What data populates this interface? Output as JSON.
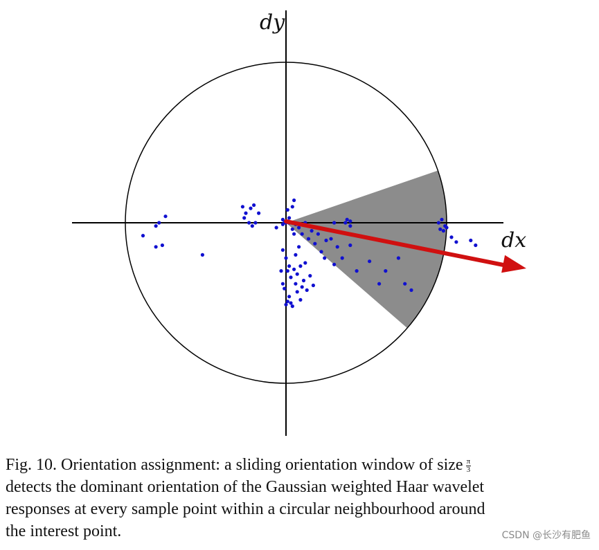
{
  "figure": {
    "axis_x_label": "dx",
    "axis_y_label": "dy",
    "window_color": "#8c8c8c",
    "point_color": "#1010d0",
    "arrow_color": "#d01010",
    "points": [
      [
        0.97,
        0.02
      ],
      [
        0.95,
        0.0
      ],
      [
        0.99,
        -0.02
      ],
      [
        0.96,
        -0.04
      ],
      [
        0.98,
        -0.05
      ],
      [
        1.0,
        -0.03
      ],
      [
        1.03,
        -0.09
      ],
      [
        1.06,
        -0.12
      ],
      [
        1.18,
        -0.14
      ],
      [
        1.15,
        -0.11
      ],
      [
        0.38,
        0.02
      ],
      [
        0.4,
        0.01
      ],
      [
        0.37,
        0.0
      ],
      [
        0.4,
        -0.02
      ],
      [
        0.3,
        0.0
      ],
      [
        0.28,
        -0.1
      ],
      [
        0.12,
        0.0
      ],
      [
        0.16,
        -0.05
      ],
      [
        0.2,
        -0.07
      ],
      [
        0.25,
        -0.11
      ],
      [
        0.32,
        -0.15
      ],
      [
        0.35,
        -0.22
      ],
      [
        0.4,
        -0.14
      ],
      [
        0.44,
        -0.3
      ],
      [
        0.52,
        -0.24
      ],
      [
        0.58,
        -0.38
      ],
      [
        0.7,
        -0.22
      ],
      [
        0.74,
        -0.38
      ],
      [
        0.78,
        -0.42
      ],
      [
        0.62,
        -0.3
      ],
      [
        0.06,
        -0.01
      ],
      [
        0.08,
        -0.03
      ],
      [
        0.1,
        -0.07
      ],
      [
        0.05,
        -0.07
      ],
      [
        0.18,
        -0.13
      ],
      [
        0.14,
        -0.1
      ],
      [
        0.22,
        -0.18
      ],
      [
        0.24,
        -0.22
      ],
      [
        0.3,
        -0.26
      ],
      [
        0.04,
        -0.04
      ],
      [
        0.0,
        0.0
      ],
      [
        0.01,
        0.01
      ],
      [
        0.02,
        0.0
      ],
      [
        -0.01,
        0.0
      ],
      [
        -0.02,
        -0.01
      ],
      [
        0.01,
        0.08
      ],
      [
        0.04,
        0.1
      ],
      [
        0.05,
        0.14
      ],
      [
        0.02,
        0.03
      ],
      [
        -0.02,
        0.02
      ],
      [
        -0.2,
        0.11
      ],
      [
        -0.22,
        0.09
      ],
      [
        -0.25,
        0.06
      ],
      [
        -0.17,
        0.06
      ],
      [
        -0.23,
        0.0
      ],
      [
        -0.21,
        -0.02
      ],
      [
        -0.19,
        0.0
      ],
      [
        -0.26,
        0.03
      ],
      [
        -0.27,
        0.1
      ],
      [
        -0.06,
        -0.03
      ],
      [
        -0.02,
        -0.17
      ],
      [
        0.0,
        -0.22
      ],
      [
        0.02,
        -0.27
      ],
      [
        0.05,
        -0.29
      ],
      [
        -0.03,
        -0.3
      ],
      [
        0.01,
        -0.3
      ],
      [
        0.03,
        -0.34
      ],
      [
        0.07,
        -0.32
      ],
      [
        0.06,
        -0.38
      ],
      [
        0.1,
        -0.4
      ],
      [
        0.09,
        -0.27
      ],
      [
        0.12,
        -0.25
      ],
      [
        0.15,
        -0.33
      ],
      [
        0.17,
        -0.39
      ],
      [
        0.07,
        -0.43
      ],
      [
        0.09,
        -0.48
      ],
      [
        0.02,
        -0.46
      ],
      [
        0.03,
        -0.5
      ],
      [
        0.0,
        -0.51
      ],
      [
        0.04,
        -0.52
      ],
      [
        0.01,
        -0.49
      ],
      [
        0.13,
        -0.42
      ],
      [
        -0.01,
        -0.41
      ],
      [
        -0.02,
        -0.38
      ],
      [
        0.11,
        -0.36
      ],
      [
        0.06,
        -0.2
      ],
      [
        0.08,
        -0.15
      ],
      [
        -0.79,
        0.0
      ],
      [
        -0.81,
        -0.02
      ],
      [
        -0.75,
        0.04
      ],
      [
        -0.89,
        -0.08
      ],
      [
        -0.77,
        -0.14
      ],
      [
        -0.81,
        -0.15
      ],
      [
        -0.52,
        -0.2
      ]
    ]
  },
  "caption": {
    "line1": "Fig. 10. Orientation assignment: a sliding orientation window of size",
    "frac_num": "π",
    "frac_den": "3",
    "line2": "detects the dominant orientation of the Gaussian weighted Haar wavelet",
    "line3": "responses at every sample point within a circular neighbourhood around",
    "line4": "the interest point."
  },
  "watermark": "CSDN @长沙有肥鱼"
}
